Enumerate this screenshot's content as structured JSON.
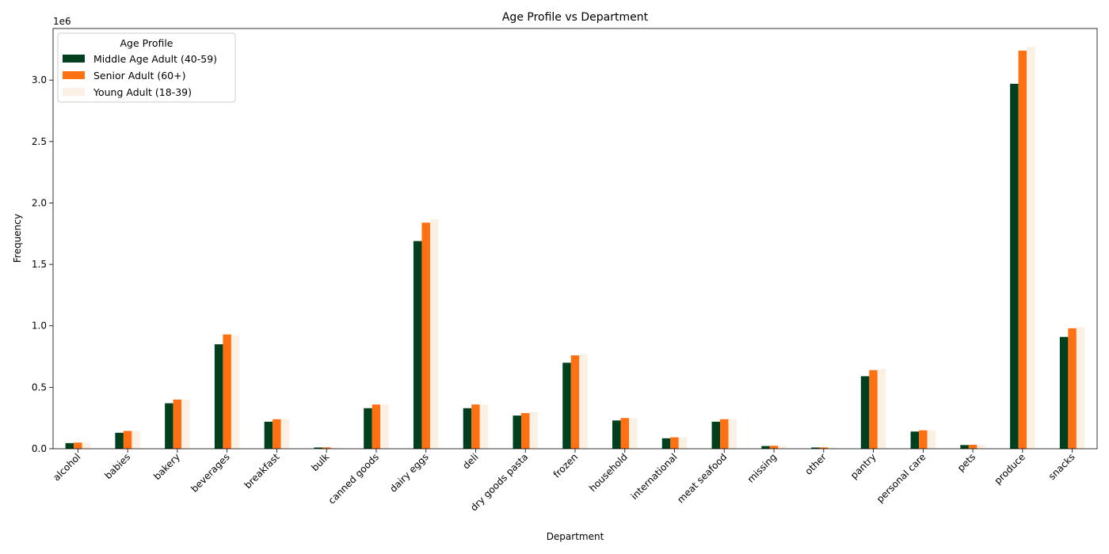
{
  "chart_data": {
    "type": "bar",
    "title": "Age Profile vs Department",
    "xlabel": "Department",
    "ylabel": "Frequency",
    "y_scale_label": "1e6",
    "ylim": [
      0,
      3.42
    ],
    "yticks": [
      "0.0",
      "0.5",
      "1.0",
      "1.5",
      "2.0",
      "2.5",
      "3.0"
    ],
    "categories": [
      "alcohol",
      "babies",
      "bakery",
      "beverages",
      "breakfast",
      "bulk",
      "canned goods",
      "dairy eggs",
      "deli",
      "dry goods pasta",
      "frozen",
      "household",
      "international",
      "meat seafood",
      "missing",
      "other",
      "pantry",
      "personal care",
      "pets",
      "produce",
      "snacks"
    ],
    "legend": {
      "title": "Age Profile",
      "placement": "top-left"
    },
    "series": [
      {
        "name": "Middle Age Adult (40-59)",
        "color": "#00401f",
        "values": [
          0.046,
          0.13,
          0.37,
          0.85,
          0.22,
          0.01,
          0.33,
          1.69,
          0.33,
          0.27,
          0.7,
          0.23,
          0.085,
          0.22,
          0.022,
          0.01,
          0.59,
          0.14,
          0.03,
          2.97,
          0.91
        ]
      },
      {
        "name": "Senior Adult (60+)",
        "color": "#ff7012",
        "values": [
          0.05,
          0.145,
          0.4,
          0.93,
          0.24,
          0.011,
          0.36,
          1.84,
          0.36,
          0.29,
          0.76,
          0.25,
          0.093,
          0.24,
          0.024,
          0.011,
          0.64,
          0.15,
          0.032,
          3.24,
          0.98
        ]
      },
      {
        "name": "Young Adult (18-39)",
        "color": "#faf0e4",
        "values": [
          0.05,
          0.145,
          0.4,
          0.92,
          0.24,
          0.011,
          0.36,
          1.87,
          0.36,
          0.3,
          0.77,
          0.25,
          0.093,
          0.24,
          0.024,
          0.011,
          0.65,
          0.15,
          0.032,
          3.27,
          0.99
        ]
      }
    ]
  }
}
